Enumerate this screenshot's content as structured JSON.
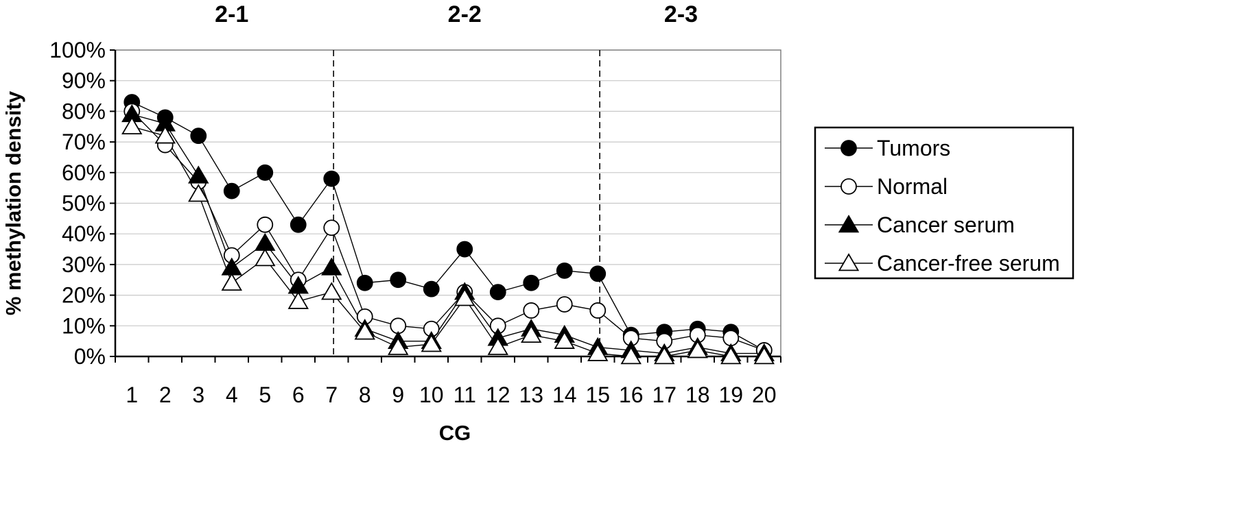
{
  "chart_data": {
    "type": "line",
    "xlabel": "CG",
    "ylabel": "% methylation density",
    "ylim": [
      0,
      100
    ],
    "y_ticks": [
      "0%",
      "10%",
      "20%",
      "30%",
      "40%",
      "50%",
      "60%",
      "70%",
      "80%",
      "90%",
      "100%"
    ],
    "x": [
      "1",
      "2",
      "3",
      "4",
      "5",
      "6",
      "7",
      "8",
      "9",
      "10",
      "11",
      "12",
      "13",
      "14",
      "15",
      "16",
      "17",
      "18",
      "19",
      "20"
    ],
    "grid": "horizontal",
    "legend_position": "right",
    "regions": [
      {
        "label": "2-1",
        "x_start": 1,
        "x_end": 7
      },
      {
        "label": "2-2",
        "x_start": 7,
        "x_end": 15
      },
      {
        "label": "2-3",
        "x_start": 15,
        "x_end": 20
      }
    ],
    "region_dividers_after_x": [
      7,
      15
    ],
    "series": [
      {
        "name": "Tumors",
        "marker": "filled-circle",
        "values": [
          83,
          78,
          72,
          54,
          60,
          43,
          58,
          24,
          25,
          22,
          35,
          21,
          24,
          28,
          27,
          7,
          8,
          9,
          8,
          2
        ]
      },
      {
        "name": "Normal",
        "marker": "open-circle",
        "values": [
          80,
          69,
          57,
          33,
          43,
          25,
          42,
          13,
          10,
          9,
          21,
          10,
          15,
          17,
          15,
          6,
          5,
          7,
          6,
          2
        ]
      },
      {
        "name": "Cancer serum",
        "marker": "filled-triangle",
        "values": [
          79,
          76,
          59,
          29,
          37,
          23,
          29,
          9,
          5,
          5,
          21,
          6,
          9,
          7,
          3,
          2,
          1,
          3,
          1,
          1
        ]
      },
      {
        "name": "Cancer-free serum",
        "marker": "open-triangle",
        "values": [
          75,
          72,
          53,
          24,
          32,
          18,
          21,
          8,
          3,
          4,
          19,
          3,
          7,
          5,
          1,
          0,
          0,
          2,
          0,
          0
        ]
      }
    ]
  }
}
